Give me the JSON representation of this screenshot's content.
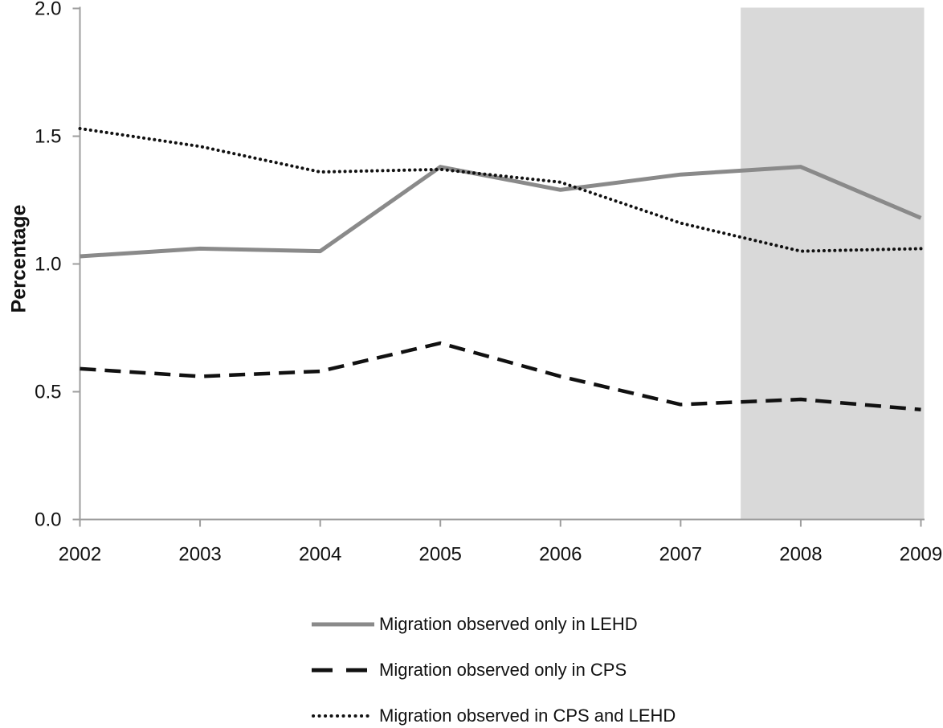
{
  "chart_data": {
    "type": "line",
    "title": "",
    "xlabel": "",
    "ylabel": "Percentage",
    "x": [
      2002,
      2003,
      2004,
      2005,
      2006,
      2007,
      2008,
      2009
    ],
    "ylim": [
      0.0,
      2.0
    ],
    "y_ticks": [
      0.0,
      0.5,
      1.0,
      1.5,
      2.0
    ],
    "y_tick_labels": [
      "0.0",
      "0.5",
      "1.0",
      "1.5",
      "2.0"
    ],
    "grid": false,
    "legend_position": "below",
    "axis_color": "#9d9d9d",
    "series": [
      {
        "name": "Migration observed only in LEHD",
        "style": "solid-gray",
        "color": "#8a8a8a",
        "values": [
          1.03,
          1.06,
          1.05,
          1.38,
          1.29,
          1.35,
          1.38,
          1.18
        ]
      },
      {
        "name": "Migration observed only in CPS",
        "style": "dashed-black",
        "color": "#111111",
        "values": [
          0.59,
          0.56,
          0.58,
          0.69,
          0.56,
          0.45,
          0.47,
          0.43
        ]
      },
      {
        "name": "Migration observed in CPS and LEHD",
        "style": "dotted-black",
        "color": "#111111",
        "values": [
          1.53,
          1.46,
          1.36,
          1.37,
          1.32,
          1.16,
          1.05,
          1.06
        ]
      }
    ],
    "shaded_region": {
      "x_from": 2007.5,
      "x_to": 2009,
      "color": "#d9d9d9"
    }
  }
}
